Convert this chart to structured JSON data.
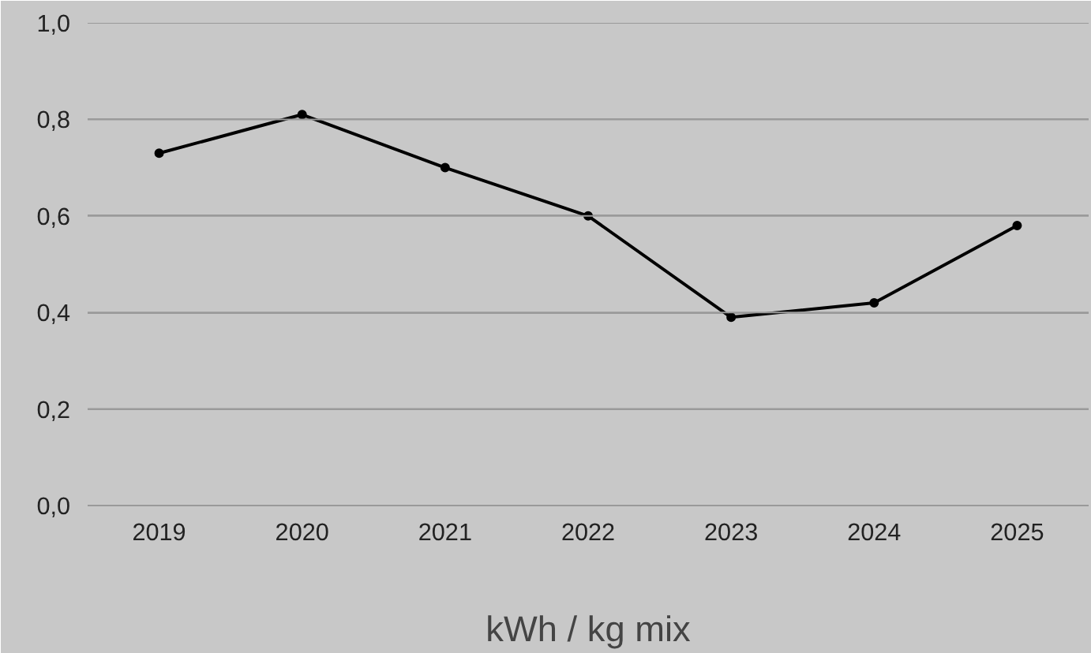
{
  "chart_data": {
    "type": "line",
    "xlabel": "kWh / kg mix",
    "categories": [
      "2019",
      "2020",
      "2021",
      "2022",
      "2023",
      "2024",
      "2025"
    ],
    "series": [
      {
        "color": "#000000",
        "values": [
          0.73,
          0.81,
          0.7,
          0.6,
          0.39,
          0.42,
          0.58
        ]
      }
    ],
    "ylim": [
      0,
      1.0
    ],
    "yticks": [
      {
        "value": 0,
        "label": "0,0"
      },
      {
        "value": 0.2,
        "label": "0,2"
      },
      {
        "value": 0.4,
        "label": "0,4"
      },
      {
        "value": 0.6,
        "label": "0,6"
      },
      {
        "value": 0.8,
        "label": "0,8"
      },
      {
        "value": 1.0,
        "label": "1,0"
      }
    ],
    "grid": "y",
    "marker": "circle"
  }
}
